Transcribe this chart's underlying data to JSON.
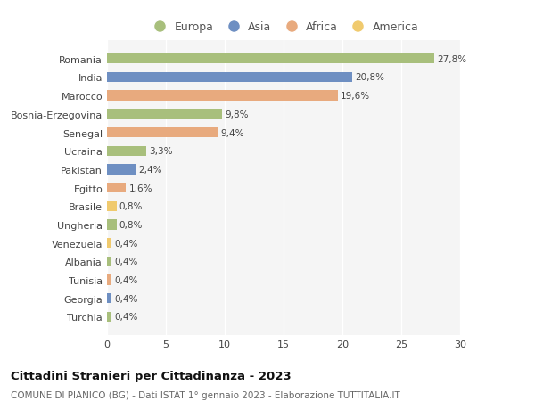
{
  "countries": [
    "Romania",
    "India",
    "Marocco",
    "Bosnia-Erzegovina",
    "Senegal",
    "Ucraina",
    "Pakistan",
    "Egitto",
    "Brasile",
    "Ungheria",
    "Venezuela",
    "Albania",
    "Tunisia",
    "Georgia",
    "Turchia"
  ],
  "values": [
    27.8,
    20.8,
    19.6,
    9.8,
    9.4,
    3.3,
    2.4,
    1.6,
    0.8,
    0.8,
    0.4,
    0.4,
    0.4,
    0.4,
    0.4
  ],
  "labels": [
    "27,8%",
    "20,8%",
    "19,6%",
    "9,8%",
    "9,4%",
    "3,3%",
    "2,4%",
    "1,6%",
    "0,8%",
    "0,8%",
    "0,4%",
    "0,4%",
    "0,4%",
    "0,4%",
    "0,4%"
  ],
  "colors": [
    "#a8bf7c",
    "#6e8fc2",
    "#e8aa7e",
    "#a8bf7c",
    "#e8aa7e",
    "#a8bf7c",
    "#6e8fc2",
    "#e8aa7e",
    "#f0ca6e",
    "#a8bf7c",
    "#f0ca6e",
    "#a8bf7c",
    "#e8aa7e",
    "#6e8fc2",
    "#a8bf7c"
  ],
  "legend_labels": [
    "Europa",
    "Asia",
    "Africa",
    "America"
  ],
  "legend_colors": [
    "#a8bf7c",
    "#6e8fc2",
    "#e8aa7e",
    "#f0ca6e"
  ],
  "title": "Cittadini Stranieri per Cittadinanza - 2023",
  "subtitle": "COMUNE DI PIANICO (BG) - Dati ISTAT 1° gennaio 2023 - Elaborazione TUTTITALIA.IT",
  "xlim": [
    0,
    30
  ],
  "xticks": [
    0,
    5,
    10,
    15,
    20,
    25,
    30
  ],
  "bg_color": "#ffffff",
  "plot_bg_color": "#f5f5f5",
  "grid_color": "#ffffff"
}
